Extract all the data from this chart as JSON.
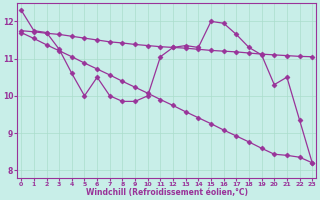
{
  "background_color": "#c8eee8",
  "grid_color": "#aaddcc",
  "line_color": "#993399",
  "marker": "D",
  "marker_size": 2.5,
  "line_width": 0.9,
  "xlim": [
    0,
    23
  ],
  "ylim": [
    7.8,
    12.5
  ],
  "yticks": [
    8,
    9,
    10,
    11,
    12
  ],
  "xticks": [
    0,
    1,
    2,
    3,
    4,
    5,
    6,
    7,
    8,
    9,
    10,
    11,
    12,
    13,
    14,
    15,
    16,
    17,
    18,
    19,
    20,
    21,
    22,
    23
  ],
  "xlabel": "Windchill (Refroidissement éolien,°C)",
  "tick_fontsize": 5.5,
  "xlabel_fontsize": 5.5,
  "series": {
    "zigzag": {
      "x": [
        0,
        1,
        2,
        3,
        4,
        5,
        6,
        7,
        8,
        9,
        10,
        11,
        12,
        13,
        14,
        15,
        16,
        17,
        18,
        19,
        20,
        21,
        22,
        23
      ],
      "y": [
        12.3,
        11.75,
        11.7,
        11.25,
        10.6,
        10.0,
        10.5,
        10.0,
        9.85,
        9.85,
        10.0,
        11.05,
        11.3,
        11.35,
        11.3,
        12.0,
        11.95,
        11.65,
        11.3,
        11.1,
        10.3,
        10.5,
        9.35,
        8.2
      ]
    },
    "upper_flat": {
      "x": [
        0,
        1,
        2,
        3,
        4,
        5,
        6,
        7,
        8,
        9,
        10,
        11,
        12,
        13,
        14,
        15,
        16,
        17,
        18,
        19,
        20,
        21,
        22,
        23
      ],
      "y": [
        11.75,
        11.72,
        11.68,
        11.65,
        11.6,
        11.55,
        11.5,
        11.45,
        11.42,
        11.38,
        11.35,
        11.32,
        11.3,
        11.28,
        11.25,
        11.22,
        11.2,
        11.18,
        11.15,
        11.12,
        11.1,
        11.08,
        11.06,
        11.05
      ]
    },
    "diagonal": {
      "x": [
        0,
        1,
        2,
        3,
        4,
        5,
        6,
        7,
        8,
        9,
        10,
        11,
        12,
        13,
        14,
        15,
        16,
        17,
        18,
        19,
        20,
        21,
        22,
        23
      ],
      "y": [
        11.7,
        11.54,
        11.37,
        11.21,
        11.05,
        10.88,
        10.72,
        10.56,
        10.39,
        10.23,
        10.07,
        9.9,
        9.74,
        9.57,
        9.41,
        9.25,
        9.08,
        8.92,
        8.76,
        8.59,
        8.43,
        8.4,
        8.35,
        8.2
      ]
    }
  }
}
